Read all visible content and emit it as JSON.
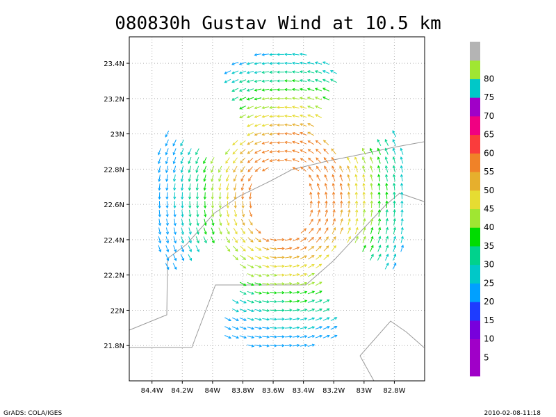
{
  "chart_data": {
    "type": "vector-field",
    "title": "080830h Gustav Wind at 10.5 km",
    "xlim": [
      -84.55,
      -82.6
    ],
    "ylim": [
      21.6,
      23.55
    ],
    "x_ticks": [
      {
        "value": -84.4,
        "label": "84.4W"
      },
      {
        "value": -84.2,
        "label": "84.2W"
      },
      {
        "value": -84.0,
        "label": "84W"
      },
      {
        "value": -83.8,
        "label": "83.8W"
      },
      {
        "value": -83.6,
        "label": "83.6W"
      },
      {
        "value": -83.4,
        "label": "83.4W"
      },
      {
        "value": -83.2,
        "label": "83.2W"
      },
      {
        "value": -83.0,
        "label": "83W"
      },
      {
        "value": -82.8,
        "label": "82.8W"
      }
    ],
    "y_ticks": [
      {
        "value": 21.8,
        "label": "21.8N"
      },
      {
        "value": 22.0,
        "label": "22N"
      },
      {
        "value": 22.2,
        "label": "22.2N"
      },
      {
        "value": 22.4,
        "label": "22.4N"
      },
      {
        "value": 22.6,
        "label": "22.6N"
      },
      {
        "value": 22.8,
        "label": "22.8N"
      },
      {
        "value": 23.0,
        "label": "23N"
      },
      {
        "value": 23.2,
        "label": "23.2N"
      },
      {
        "value": 23.4,
        "label": "23.4N"
      }
    ],
    "grid": true,
    "vortex_center": {
      "lon": -83.55,
      "lat": 22.62
    },
    "colorbar": {
      "placement": "right",
      "levels": [
        {
          "label": "",
          "color": "#a000c8"
        },
        {
          "label": "5",
          "color": "#a000c8"
        },
        {
          "label": "10",
          "color": "#7800dc"
        },
        {
          "label": "15",
          "color": "#1e3cff"
        },
        {
          "label": "20",
          "color": "#00a0ff"
        },
        {
          "label": "25",
          "color": "#00c8c8"
        },
        {
          "label": "30",
          "color": "#00d28c"
        },
        {
          "label": "35",
          "color": "#00dc00"
        },
        {
          "label": "40",
          "color": "#a0e632"
        },
        {
          "label": "45",
          "color": "#e6dc32"
        },
        {
          "label": "50",
          "color": "#e6af2d"
        },
        {
          "label": "55",
          "color": "#f08228"
        },
        {
          "label": "60",
          "color": "#fa3c3c"
        },
        {
          "label": "65",
          "color": "#f00082"
        },
        {
          "label": "70",
          "color": "#a000c8"
        },
        {
          "label": "75",
          "color": "#00c8c8"
        },
        {
          "label": "80",
          "color": "#a0e632"
        },
        {
          "label": "",
          "color": "#b4b4b4"
        }
      ]
    }
  },
  "footer": {
    "left": "GrADS: COLA/IGES",
    "right": "2010-02-08-11:18"
  }
}
